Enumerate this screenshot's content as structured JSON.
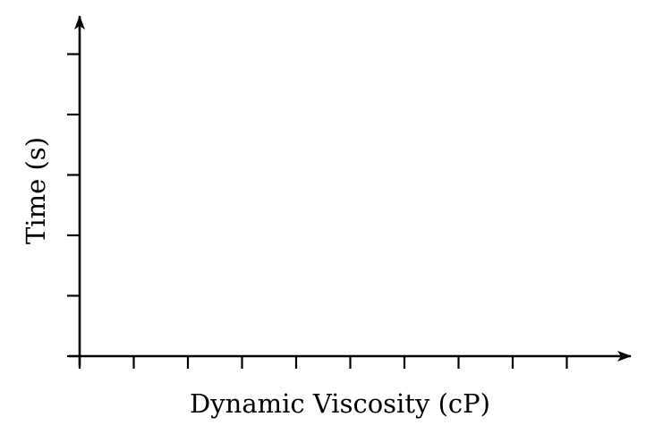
{
  "chart_data": {
    "type": "line",
    "title": "",
    "xlabel": "Dynamic Viscosity (cP)",
    "ylabel": "Time (s)",
    "x_tick_count": 10,
    "y_tick_count": 6,
    "series": [],
    "grid": false,
    "tick_labels_shown": false,
    "axis_color": "#000000",
    "background": "#ffffff"
  }
}
